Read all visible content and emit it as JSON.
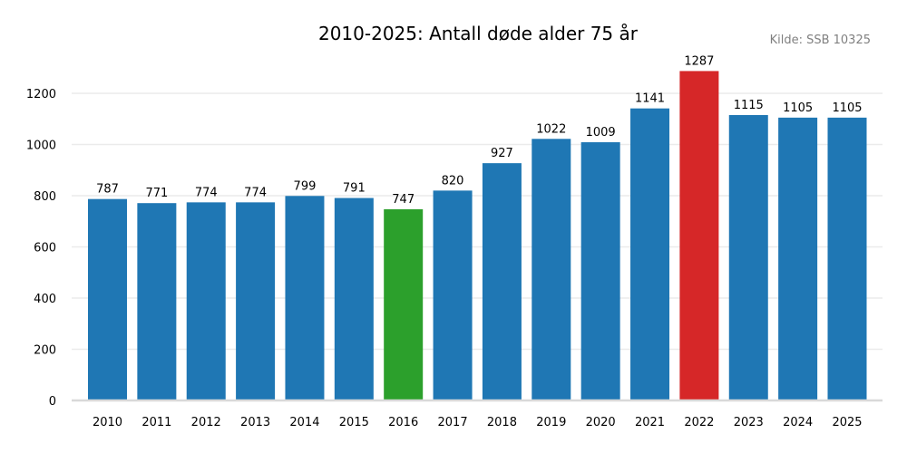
{
  "chart_data": {
    "type": "bar",
    "title": "2010-2025: Antall døde alder 75 år",
    "source": "Kilde: SSB 10325",
    "xlabel": "",
    "ylabel": "",
    "categories": [
      "2010",
      "2011",
      "2012",
      "2013",
      "2014",
      "2015",
      "2016",
      "2017",
      "2018",
      "2019",
      "2020",
      "2021",
      "2022",
      "2023",
      "2024",
      "2025"
    ],
    "values": [
      787,
      771,
      774,
      774,
      799,
      791,
      747,
      820,
      927,
      1022,
      1009,
      1141,
      1287,
      1115,
      1105,
      1105
    ],
    "colors": [
      "#1f77b4",
      "#1f77b4",
      "#1f77b4",
      "#1f77b4",
      "#1f77b4",
      "#1f77b4",
      "#2ca02c",
      "#1f77b4",
      "#1f77b4",
      "#1f77b4",
      "#1f77b4",
      "#1f77b4",
      "#d62728",
      "#1f77b4",
      "#1f77b4",
      "#1f77b4"
    ],
    "highlight_colors": {
      "default": "#1f77b4",
      "min": "#2ca02c",
      "max": "#d62728"
    },
    "yticks": [
      0,
      200,
      400,
      600,
      800,
      1000,
      1200
    ],
    "ytick_labels": [
      "0",
      "200",
      "400",
      "600",
      "800",
      "1000",
      "1200"
    ],
    "ylim": [
      0,
      1300
    ],
    "grid": "horizontal",
    "data_labels": true
  }
}
